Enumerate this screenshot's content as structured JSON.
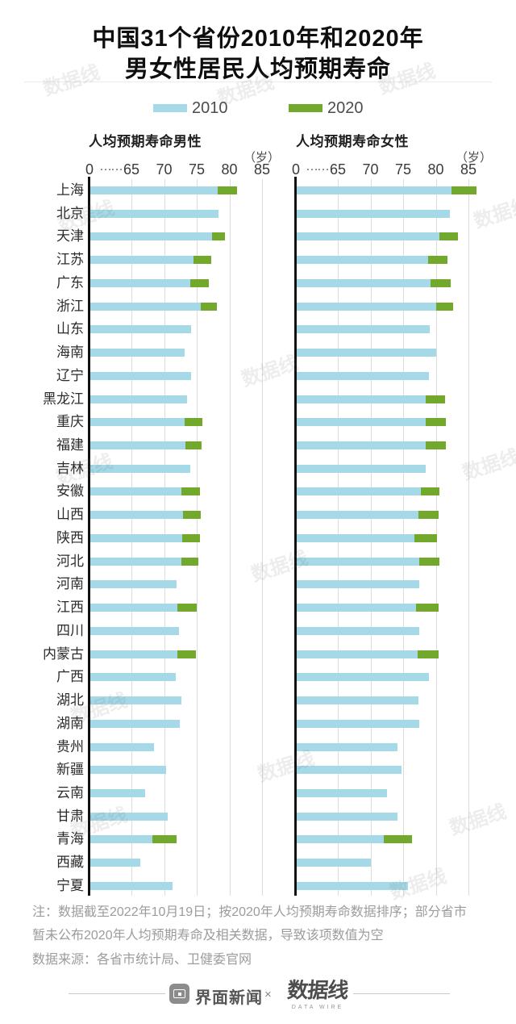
{
  "title": {
    "line1": "中国31个省份2010年和2020年",
    "line2": "男女性居民人均预期寿命"
  },
  "legend": {
    "items": [
      {
        "label": "2010",
        "color": "#a6d9e7"
      },
      {
        "label": "2020",
        "color": "#72a82c"
      }
    ]
  },
  "axis": {
    "zero_label": "0",
    "break_dots": "……",
    "tick_values": [
      65,
      70,
      75,
      80,
      85
    ],
    "unit_label": "（岁）"
  },
  "chart_data": {
    "type": "bar",
    "orientation": "horizontal",
    "unit": "岁",
    "axis_note": "x axis broken between 0 and 65, range 65-85, gridlines every 5",
    "categories": [
      "上海",
      "北京",
      "天津",
      "江苏",
      "广东",
      "浙江",
      "山东",
      "海南",
      "辽宁",
      "黑龙江",
      "重庆",
      "福建",
      "吉林",
      "安徽",
      "山西",
      "陕西",
      "河北",
      "河南",
      "江西",
      "四川",
      "内蒙古",
      "广西",
      "湖北",
      "湖南",
      "贵州",
      "新疆",
      "云南",
      "甘肃",
      "青海",
      "西藏",
      "宁夏"
    ],
    "charts": [
      {
        "title": "人均预期寿命男性",
        "series": [
          {
            "name": "2010",
            "color": "#a6d9e7",
            "values": [
              78.2,
              78.3,
              77.4,
              74.5,
              74.0,
              75.6,
              74.1,
              73.2,
              74.1,
              73.5,
              73.2,
              73.3,
              74.0,
              72.7,
              72.9,
              72.8,
              72.7,
              71.9,
              72.0,
              72.3,
              72.0,
              71.8,
              72.7,
              72.4,
              68.4,
              70.3,
              67.1,
              70.6,
              68.2,
              66.3,
              71.3
            ]
          },
          {
            "name": "2020",
            "color": "#72a82c",
            "values": [
              81.2,
              null,
              79.3,
              77.2,
              76.8,
              78.1,
              null,
              null,
              null,
              null,
              75.9,
              75.8,
              null,
              75.5,
              75.6,
              75.5,
              75.2,
              null,
              75.0,
              null,
              74.9,
              null,
              null,
              null,
              null,
              null,
              null,
              null,
              71.9,
              null,
              null
            ]
          }
        ]
      },
      {
        "title": "人均预期寿命女性",
        "series": [
          {
            "name": "2010",
            "color": "#a6d9e7",
            "values": [
              82.4,
              82.2,
              80.5,
              78.8,
              79.2,
              80.0,
              79.1,
              80.0,
              78.9,
              78.5,
              78.5,
              78.5,
              78.4,
              77.7,
              77.3,
              76.7,
              77.5,
              77.5,
              77.0,
              77.5,
              77.2,
              79.0,
              77.3,
              77.5,
              74.1,
              74.8,
              72.5,
              74.1,
              72.0,
              70.1,
              75.7
            ]
          },
          {
            "name": "2020",
            "color": "#72a82c",
            "values": [
              86.2,
              null,
              83.4,
              81.8,
              82.3,
              82.6,
              null,
              null,
              null,
              81.4,
              81.6,
              81.5,
              null,
              80.6,
              80.4,
              80.2,
              80.5,
              null,
              80.4,
              null,
              80.4,
              null,
              null,
              null,
              null,
              null,
              null,
              null,
              76.3,
              null,
              null
            ]
          }
        ]
      }
    ]
  },
  "notes": {
    "line1": "注：数据截至2022年10月19日；按2020年人均预期寿命数据排序；部分省市",
    "line2": "暂未公布2020年人均预期寿命及相关数据，导致该项数值为空",
    "source": "数据来源：各省市统计局、卫健委官网"
  },
  "footer": {
    "brand1": "界面新闻",
    "separator": "×",
    "brand2": "数据线",
    "brand2_sub": "DATA WIRE"
  },
  "watermark": "数据线"
}
